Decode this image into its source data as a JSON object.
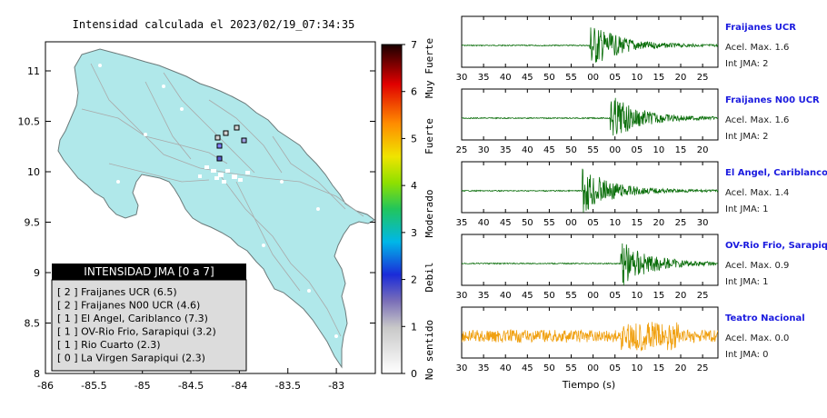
{
  "map": {
    "title": "Intensidad calculada el 2023/02/19_07:34:35",
    "x_ticks": [
      "-86",
      "-85.5",
      "-85",
      "-84.5",
      "-84",
      "-83.5",
      "-83"
    ],
    "y_ticks": [
      "11",
      "10.5",
      "10",
      "9.5",
      "9",
      "8.5",
      "8"
    ],
    "legend_title": "INTENSIDAD JMA [0 a 7]",
    "legend_items": [
      "[ 2 ]  Fraijanes UCR (6.5)",
      "[ 2 ]  Fraijanes N00 UCR (4.6)",
      "[ 1 ]  El Angel, Cariblanco (7.3)",
      "[ 1 ]  OV-Rio Frio, Sarapiqui (3.2)",
      "[ 1 ]  Rio Cuarto (2.3)",
      "[ 0 ]  La Virgen Sarapiqui (2.3)"
    ]
  },
  "colorbar": {
    "ticks": [
      "0",
      "1",
      "2",
      "3",
      "4",
      "5",
      "6",
      "7"
    ],
    "categories": [
      "No sentido",
      "Debil",
      "Moderado",
      "Fuerte",
      "Muy Fuerte"
    ]
  },
  "traces": [
    {
      "station": "Fraijanes UCR",
      "acel": "Acel. Max. 1.6",
      "jma": "Int JMA: 2",
      "ticks": [
        "30",
        "35",
        "40",
        "45",
        "50",
        "55",
        "00",
        "05",
        "10",
        "15",
        "20",
        "25"
      ],
      "color": "#0a6e0a"
    },
    {
      "station": "Fraijanes N00 UCR",
      "acel": "Acel. Max. 1.6",
      "jma": "Int JMA: 2",
      "ticks": [
        "25",
        "30",
        "35",
        "40",
        "45",
        "50",
        "55",
        "00",
        "05",
        "10",
        "15",
        "20"
      ],
      "color": "#0a6e0a"
    },
    {
      "station": "El Angel, Cariblanco",
      "acel": "Acel. Max. 1.4",
      "jma": "Int JMA: 1",
      "ticks": [
        "35",
        "40",
        "45",
        "50",
        "55",
        "00",
        "05",
        "10",
        "15",
        "20",
        "25",
        "30"
      ],
      "color": "#0a6e0a"
    },
    {
      "station": "OV-Rio Frio, Sarapiqui",
      "acel": "Acel. Max. 0.9",
      "jma": "Int JMA: 1",
      "ticks": [
        "30",
        "35",
        "40",
        "45",
        "50",
        "55",
        "00",
        "05",
        "10",
        "15",
        "20",
        "25"
      ],
      "color": "#0a6e0a"
    },
    {
      "station": "Teatro Nacional",
      "acel": "Acel. Max. 0.0",
      "jma": "Int JMA: 0",
      "ticks": [
        "30",
        "35",
        "40",
        "45",
        "50",
        "55",
        "00",
        "05",
        "10",
        "15",
        "20",
        "25"
      ],
      "color": "#f0a010"
    }
  ],
  "traces_xlabel": "Tiempo (s)"
}
